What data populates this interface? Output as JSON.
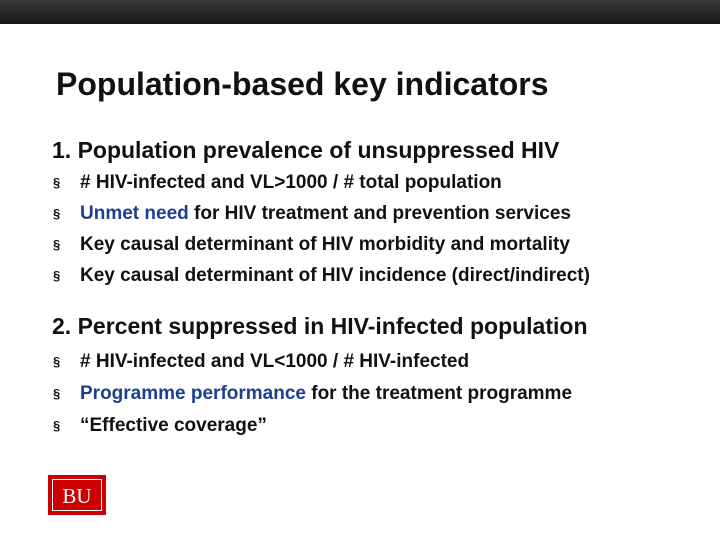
{
  "slide": {
    "title": "Population-based key indicators",
    "bullet_marker": "§",
    "sections": [
      {
        "heading": "1. Population prevalence of unsuppressed HIV",
        "bullets": [
          {
            "pre": "# HIV-infected and VL>1000  /  # total population",
            "hl": "",
            "post": ""
          },
          {
            "pre": "",
            "hl": "Unmet need",
            "post": " for HIV treatment and prevention services"
          },
          {
            "pre": "Key causal determinant of HIV morbidity and mortality",
            "hl": "",
            "post": ""
          },
          {
            "pre": "Key causal determinant of HIV incidence (direct/indirect)",
            "hl": "",
            "post": ""
          }
        ]
      },
      {
        "heading": "2. Percent suppressed in HIV-infected population",
        "bullets": [
          {
            "pre": "# HIV-infected and VL<1000  /  # HIV-infected",
            "hl": "",
            "post": ""
          },
          {
            "pre": "",
            "hl": "Programme performance",
            "post": " for the treatment programme"
          },
          {
            "pre": "“Effective coverage”",
            "hl": "",
            "post": ""
          }
        ]
      }
    ],
    "logo_text": "BU"
  },
  "colors": {
    "highlight": "#1d3f8f",
    "logo_red": "#cc0000",
    "top_bar": "#1f1f1f"
  }
}
